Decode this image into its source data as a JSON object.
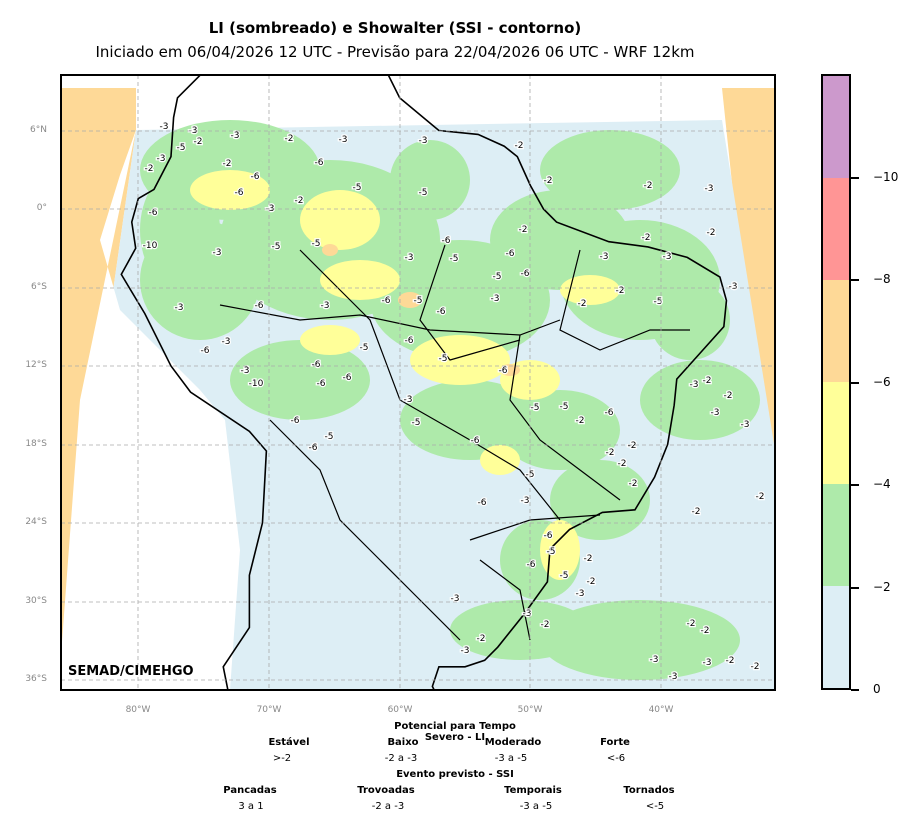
{
  "title": "LI (sombreado) e Showalter (SSI - contorno)",
  "subtitle": "Iniciado em 06/04/2026 12 UTC - Previsão para 22/04/2026 06 UTC - WRF 12km",
  "credit": "SEMAD/CIMEHGO",
  "lat_ticks": [
    "6°N",
    "0°",
    "6°S",
    "12°S",
    "18°S",
    "24°S",
    "30°S",
    "36°S"
  ],
  "lon_ticks": [
    "80°W",
    "70°W",
    "60°W",
    "50°W",
    "40°W"
  ],
  "colorbar": {
    "ticks": [
      "−10",
      "−8",
      "−6",
      "−4",
      "−2",
      "0"
    ],
    "colors": [
      "#cc99cc",
      "#ff9595",
      "#fed997",
      "#ffff99",
      "#aeeaaa",
      "#ddeef5"
    ]
  },
  "legend": {
    "li_title": "Potencial para Tempo Severo - LI",
    "li_classes": [
      {
        "name": "Estável",
        "range": ">-2"
      },
      {
        "name": "Baixo",
        "range": "-2 a -3"
      },
      {
        "name": "Moderado",
        "range": "-3 a -5"
      },
      {
        "name": "Forte",
        "range": "<-6"
      }
    ],
    "ssi_title": "Evento previsto - SSI",
    "ssi_classes": [
      {
        "name": "Pancadas",
        "range": "3 a 1"
      },
      {
        "name": "Trovoadas",
        "range": "-2 a -3"
      },
      {
        "name": "Temporais",
        "range": "-3 a -5"
      },
      {
        "name": "Tornados",
        "range": "<-5"
      }
    ]
  },
  "contour_labels": [
    "-3",
    "-3",
    "-5",
    "-2",
    "-3",
    "-2",
    "-3",
    "-3",
    "-2",
    "-3",
    "-2",
    "-2",
    "-6",
    "-6",
    "-5",
    "-5",
    "-2",
    "-2",
    "-3",
    "-6",
    "-6",
    "-3",
    "-2",
    "-2",
    "-10",
    "-3",
    "-5",
    "-5",
    "-6",
    "-3",
    "-5",
    "-6",
    "-2",
    "-2",
    "-5",
    "-6",
    "-3",
    "-3",
    "-6",
    "-5",
    "-6",
    "-3",
    "-2",
    "-2",
    "-5",
    "-3",
    "-3",
    "-6",
    "-3",
    "-5",
    "-6",
    "-5",
    "-6",
    "-3",
    "-6",
    "-3",
    "-10",
    "-6",
    "-6",
    "-6",
    "-3",
    "-5",
    "-6",
    "-5",
    "-5",
    "-2",
    "-6",
    "-3",
    "-2",
    "-2",
    "-3",
    "-3",
    "-2",
    "-2",
    "-2",
    "-2",
    "-5",
    "-6",
    "-3",
    "-2",
    "-2",
    "-6",
    "-5",
    "-2",
    "-6",
    "-5",
    "-2",
    "-3",
    "-3",
    "-3",
    "-2",
    "-2",
    "-3",
    "-2",
    "-2",
    "-3",
    "-3",
    "-2",
    "-2",
    "-3",
    "-6",
    "-6",
    "-5"
  ]
}
